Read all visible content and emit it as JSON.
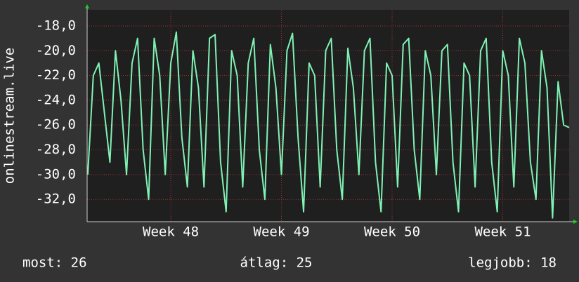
{
  "chart_data": {
    "type": "line",
    "y_label": "onlinestream.live",
    "x": [
      47.25,
      47.3,
      47.35,
      47.4,
      47.45,
      47.5,
      47.55,
      47.6,
      47.65,
      47.7,
      47.75,
      47.8,
      47.85,
      47.9,
      47.95,
      48.0,
      48.05,
      48.1,
      48.15,
      48.2,
      48.25,
      48.3,
      48.35,
      48.4,
      48.45,
      48.5,
      48.55,
      48.6,
      48.65,
      48.7,
      48.75,
      48.8,
      48.85,
      48.9,
      48.95,
      49.0,
      49.05,
      49.1,
      49.15,
      49.2,
      49.25,
      49.3,
      49.35,
      49.4,
      49.45,
      49.5,
      49.55,
      49.6,
      49.65,
      49.7,
      49.75,
      49.8,
      49.85,
      49.9,
      49.95,
      50.0,
      50.05,
      50.1,
      50.15,
      50.2,
      50.25,
      50.3,
      50.35,
      50.4,
      50.45,
      50.5,
      50.55,
      50.6,
      50.65,
      50.7,
      50.75,
      50.8,
      50.85,
      50.9,
      50.95,
      51.0,
      51.05,
      51.1,
      51.15,
      51.2,
      51.25,
      51.3,
      51.35,
      51.4,
      51.45,
      51.5,
      51.55,
      51.6
    ],
    "series": [
      {
        "color": "#7ff2b4",
        "values": [
          -30,
          -22,
          -21,
          -25,
          -29,
          -20,
          -24,
          -30,
          -21,
          -19,
          -28,
          -32,
          -19,
          -22,
          -30,
          -21,
          -18.5,
          -27,
          -31,
          -20,
          -23,
          -31,
          -19,
          -18.7,
          -29,
          -33,
          -20,
          -22,
          -31,
          -21,
          -19,
          -28,
          -32,
          -19.5,
          -23,
          -30,
          -20,
          -18.6,
          -27,
          -33,
          -21,
          -22,
          -31,
          -20,
          -19,
          -28,
          -32,
          -19.8,
          -23,
          -30,
          -20,
          -19,
          -29,
          -33,
          -21,
          -22,
          -31,
          -19.5,
          -19,
          -28,
          -32,
          -20,
          -22,
          -30,
          -20,
          -19.5,
          -29,
          -33,
          -21,
          -22,
          -31,
          -20,
          -19,
          -29,
          -33,
          -20,
          -22,
          -31,
          -19,
          -21,
          -29,
          -32,
          -20,
          -23,
          -33.5,
          -22.5,
          -26,
          -26.2
        ]
      }
    ],
    "xlim": [
      47.244,
      51.6
    ],
    "xticks": [
      {
        "value": 48,
        "label": "Week 48"
      },
      {
        "value": 49,
        "label": "Week 49"
      },
      {
        "value": 50,
        "label": "Week 50"
      },
      {
        "value": 51,
        "label": "Week 51"
      }
    ],
    "ylim": [
      -33.8,
      -16.7
    ],
    "yticks": [
      {
        "value": -32,
        "label": "-32,0"
      },
      {
        "value": -30,
        "label": "-30,0"
      },
      {
        "value": -28,
        "label": "-28,0"
      },
      {
        "value": -26,
        "label": "-26,0"
      },
      {
        "value": -24,
        "label": "-24,0"
      },
      {
        "value": -22,
        "label": "-22,0"
      },
      {
        "value": -20,
        "label": "-20,0"
      },
      {
        "value": -18,
        "label": "-18,0"
      }
    ],
    "grid": true,
    "footer": [
      "most: 26",
      "átlag: 25",
      "legjobb: 18"
    ]
  }
}
